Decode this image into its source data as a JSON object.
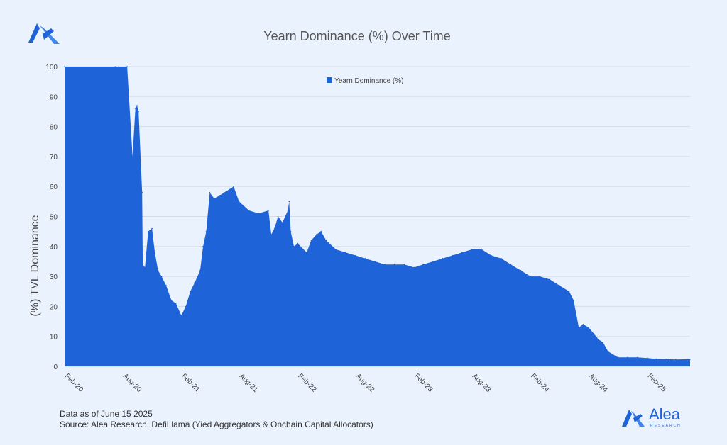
{
  "colors": {
    "accent": "#1f63d8",
    "background": "#eaf2fd",
    "grid": "#d3dcea"
  },
  "logo_icon": "alea-logo-icon",
  "footer": {
    "date_note": "Data as of June 15 2025",
    "source": "Source: Alea Research, DefiLlama (Yied Aggregators & Onchain Capital Allocators)"
  },
  "brand": {
    "name": "Alea",
    "tagline": "RESEARCH"
  },
  "chart_data": {
    "type": "area",
    "title": "Yearn Dominance (%) Over Time",
    "xlabel": "",
    "ylabel": "(%)  TVL  Dominance",
    "ylim": [
      0,
      100
    ],
    "yticks": [
      0,
      10,
      20,
      30,
      40,
      50,
      60,
      70,
      80,
      90,
      100
    ],
    "xlim": [
      "2020-02",
      "2025-06"
    ],
    "xticks": [
      "Feb-20",
      "Aug-20",
      "Feb-21",
      "Aug-21",
      "Feb-22",
      "Aug-22",
      "Feb-23",
      "Aug-23",
      "Feb-24",
      "Aug-24",
      "Feb-25"
    ],
    "legend": {
      "position": "top-center",
      "label": "Yearn Dominance (%)"
    },
    "grid": true,
    "series": [
      {
        "name": "Yearn Dominance (%)",
        "x": [
          "2020-02-01",
          "2020-07-10",
          "2020-07-20",
          "2020-08-15",
          "2020-09-01",
          "2020-09-10",
          "2020-09-15",
          "2020-09-20",
          "2020-10-01",
          "2020-10-03",
          "2020-10-10",
          "2020-10-20",
          "2020-11-01",
          "2020-11-10",
          "2020-11-20",
          "2020-12-01",
          "2020-12-15",
          "2021-01-01",
          "2021-01-15",
          "2021-02-01",
          "2021-02-15",
          "2021-03-01",
          "2021-03-15",
          "2021-04-01",
          "2021-04-10",
          "2021-04-20",
          "2021-05-01",
          "2021-05-15",
          "2021-06-01",
          "2021-06-15",
          "2021-07-01",
          "2021-07-15",
          "2021-08-01",
          "2021-09-01",
          "2021-10-01",
          "2021-11-01",
          "2021-11-10",
          "2021-11-20",
          "2021-12-01",
          "2021-12-15",
          "2022-01-01",
          "2022-01-05",
          "2022-01-10",
          "2022-01-20",
          "2022-02-01",
          "2022-03-01",
          "2022-03-15",
          "2022-04-01",
          "2022-04-15",
          "2022-05-01",
          "2022-06-01",
          "2022-07-01",
          "2022-08-01",
          "2022-09-01",
          "2022-10-01",
          "2022-11-01",
          "2022-12-01",
          "2023-01-01",
          "2023-02-01",
          "2023-03-01",
          "2023-04-01",
          "2023-05-01",
          "2023-06-01",
          "2023-07-01",
          "2023-08-01",
          "2023-09-01",
          "2023-10-01",
          "2023-11-01",
          "2023-12-01",
          "2024-01-01",
          "2024-02-01",
          "2024-03-01",
          "2024-04-01",
          "2024-05-01",
          "2024-06-01",
          "2024-06-15",
          "2024-07-01",
          "2024-07-15",
          "2024-08-01",
          "2024-09-01",
          "2024-09-15",
          "2024-10-01",
          "2024-11-01",
          "2024-12-01",
          "2025-01-01",
          "2025-02-01",
          "2025-03-01",
          "2025-04-01",
          "2025-05-01",
          "2025-06-15"
        ],
        "values": [
          100,
          100,
          100,
          100,
          70,
          86,
          87,
          85,
          58,
          34,
          33,
          45,
          46,
          38,
          32,
          30,
          27,
          22,
          21,
          17,
          20,
          25,
          28,
          32,
          40,
          45,
          58,
          56,
          57,
          58,
          59,
          60,
          55,
          52,
          51,
          52,
          44,
          46,
          50,
          48,
          52,
          55,
          45,
          40,
          41,
          38,
          42,
          44,
          45,
          42,
          39,
          38,
          37,
          36,
          35,
          34,
          34,
          34,
          33,
          34,
          35,
          36,
          37,
          38,
          39,
          39,
          37,
          36,
          34,
          32,
          30,
          30,
          29,
          27,
          25,
          22,
          13,
          14,
          13,
          9,
          8,
          5,
          3,
          3,
          3,
          2.8,
          2.5,
          2.4,
          2.3,
          2.4
        ]
      }
    ]
  }
}
